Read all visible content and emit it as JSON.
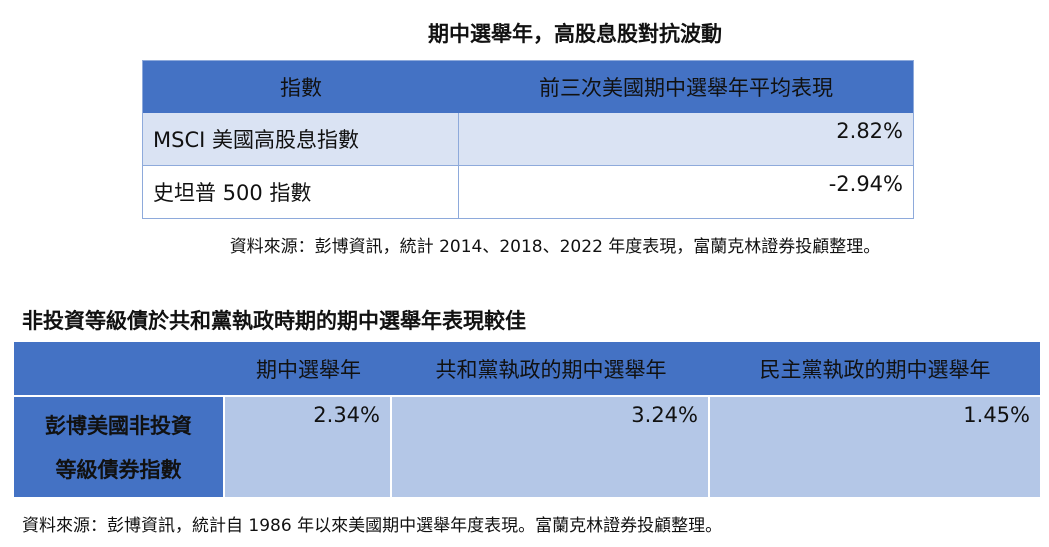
{
  "table1": {
    "title": "期中選舉年，高股息股對抗波動",
    "header": [
      "指數",
      "前三次美國期中選舉年平均表現"
    ],
    "rows": [
      [
        "MSCI 美國高股息指數",
        "2.82%"
      ],
      [
        "史坦普 500 指數",
        "-2.94%"
      ]
    ],
    "source": "資料來源：彭博資訊，統計 2014、2018、2022 年度表現，富蘭克林證券投顧整理。"
  },
  "table2": {
    "title": "非投資等級債於共和黨執政時期的期中選舉年表現較佳",
    "header": [
      "期中選舉年",
      "共和黨執政的期中選舉年",
      "民主黨執政的期中選舉年"
    ],
    "rows": [
      {
        "label": [
          "彭博美國非投資",
          "等級債券指數"
        ],
        "values": [
          "2.34%",
          "3.24%",
          "1.45%"
        ]
      }
    ],
    "source": "資料來源：彭博資訊，統計自 1986 年以來美國期中選舉年度表現。富蘭克林證券投顧整理。"
  }
}
